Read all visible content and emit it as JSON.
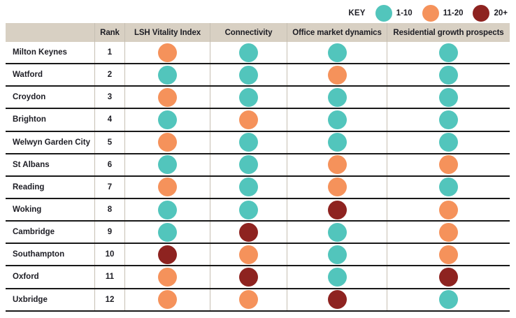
{
  "key": {
    "label": "KEY",
    "entries": [
      {
        "label": "1-10",
        "color": "#52c5bc"
      },
      {
        "label": "11-20",
        "color": "#f5925b"
      },
      {
        "label": "20+",
        "color": "#8e2320"
      }
    ]
  },
  "table": {
    "columns": {
      "city": "",
      "rank": "Rank",
      "lsh": "LSH Vitality Index",
      "connectivity": "Connectivity",
      "office": "Office market dynamics",
      "residential": "Residential growth prospects"
    }
  },
  "colors": {
    "header_background": "#d8d0c3",
    "row_separator": "#191919",
    "column_separator": "#c6bfb3",
    "text": "#1d1d24"
  },
  "chart_data": {
    "type": "table",
    "legend": {
      "label": "KEY",
      "position": "top-right",
      "entries": [
        {
          "label": "1-10",
          "color": "#52c5bc"
        },
        {
          "label": "11-20",
          "color": "#f5925b"
        },
        {
          "label": "20+",
          "color": "#8e2320"
        }
      ]
    },
    "metric_columns": [
      "LSH Vitality Index",
      "Connectivity",
      "Office market dynamics",
      "Residential growth prospects"
    ],
    "rows": [
      {
        "city": "Milton Keynes",
        "rank": "1",
        "bands": [
          "11-20",
          "1-10",
          "1-10",
          "1-10"
        ]
      },
      {
        "city": "Watford",
        "rank": "2",
        "bands": [
          "1-10",
          "1-10",
          "11-20",
          "1-10"
        ]
      },
      {
        "city": "Croydon",
        "rank": "3",
        "bands": [
          "11-20",
          "1-10",
          "1-10",
          "1-10"
        ]
      },
      {
        "city": "Brighton",
        "rank": "4",
        "bands": [
          "1-10",
          "11-20",
          "1-10",
          "1-10"
        ]
      },
      {
        "city": "Welwyn Garden City",
        "rank": "5",
        "bands": [
          "11-20",
          "1-10",
          "1-10",
          "1-10"
        ]
      },
      {
        "city": "St Albans",
        "rank": "6",
        "bands": [
          "1-10",
          "1-10",
          "11-20",
          "11-20"
        ]
      },
      {
        "city": "Reading",
        "rank": "7",
        "bands": [
          "11-20",
          "1-10",
          "11-20",
          "1-10"
        ]
      },
      {
        "city": "Woking",
        "rank": "8",
        "bands": [
          "1-10",
          "1-10",
          "20+",
          "11-20"
        ]
      },
      {
        "city": "Cambridge",
        "rank": "9",
        "bands": [
          "1-10",
          "20+",
          "1-10",
          "11-20"
        ]
      },
      {
        "city": "Southampton",
        "rank": "10",
        "bands": [
          "20+",
          "11-20",
          "1-10",
          "11-20"
        ]
      },
      {
        "city": "Oxford",
        "rank": "11",
        "bands": [
          "11-20",
          "20+",
          "1-10",
          "20+"
        ]
      },
      {
        "city": "Uxbridge",
        "rank": "12",
        "bands": [
          "11-20",
          "11-20",
          "20+",
          "1-10"
        ]
      }
    ]
  }
}
